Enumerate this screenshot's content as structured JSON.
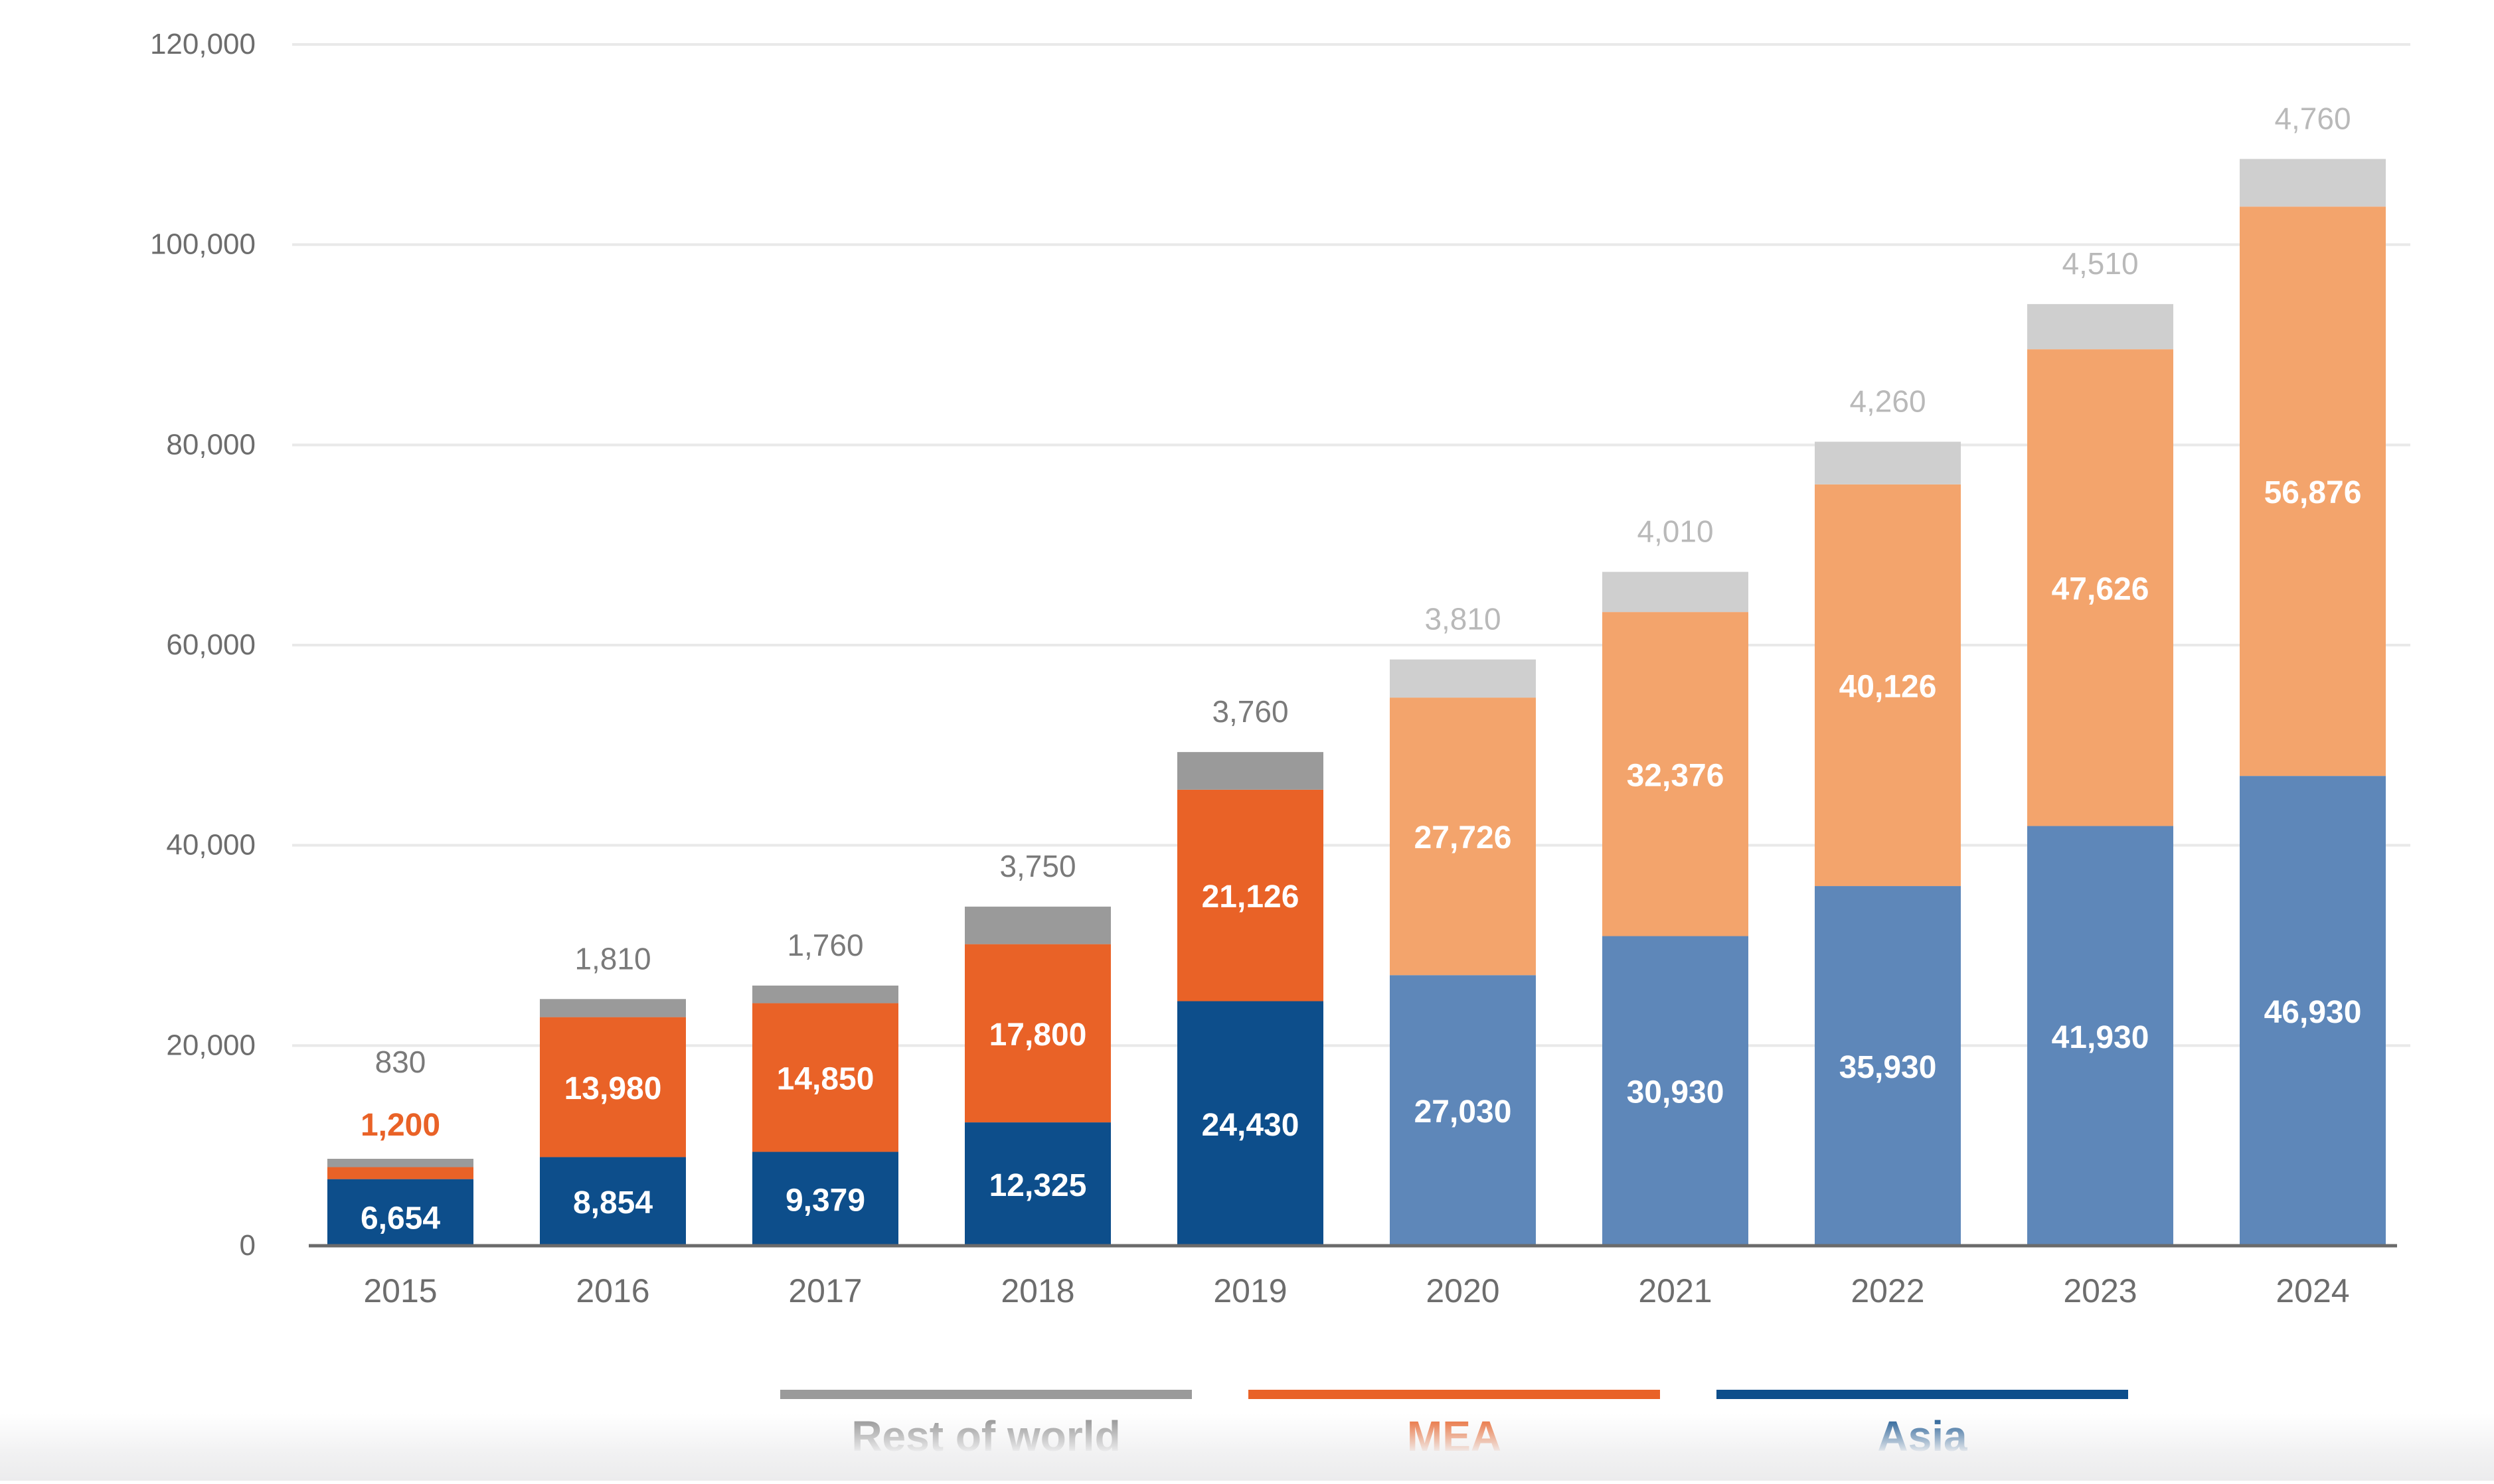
{
  "chart_data": {
    "type": "bar",
    "stacked": true,
    "categories": [
      "2015",
      "2016",
      "2017",
      "2018",
      "2019",
      "2020",
      "2021",
      "2022",
      "2023",
      "2024"
    ],
    "series": [
      {
        "name": "Asia",
        "values": [
          6654,
          8854,
          9379,
          12325,
          24430,
          27030,
          30930,
          35930,
          41930,
          46930
        ],
        "labels": [
          "6,654",
          "8,854",
          "9,379",
          "12,325",
          "24,430",
          "27,030",
          "30,930",
          "35,930",
          "41,930",
          "46,930"
        ],
        "color": "#0d4e8b",
        "forecast_color": "#5e87b9"
      },
      {
        "name": "MEA",
        "values": [
          1200,
          13980,
          14850,
          17800,
          21126,
          27726,
          32376,
          40126,
          47626,
          56876
        ],
        "labels": [
          "1,200",
          "13,980",
          "14,850",
          "17,800",
          "21,126",
          "27,726",
          "32,376",
          "40,126",
          "47,626",
          "56,876"
        ],
        "color": "#e96227",
        "forecast_color": "#f3a46c"
      },
      {
        "name": "Rest of world",
        "values": [
          830,
          1810,
          1760,
          3750,
          3760,
          3810,
          4010,
          4260,
          4510,
          4760
        ],
        "labels": [
          "830",
          "1,810",
          "1,760",
          "3,750",
          "3,760",
          "3,810",
          "4,010",
          "4,260",
          "4,510",
          "4,760"
        ],
        "color": "#9a9a9a",
        "forecast_color": "#cfcfcf"
      }
    ],
    "forecast_from_index": 5,
    "y_ticks": [
      {
        "value": 0,
        "label": "0"
      },
      {
        "value": 20000,
        "label": "20,000"
      },
      {
        "value": 40000,
        "label": "40,000"
      },
      {
        "value": 60000,
        "label": "60,000"
      },
      {
        "value": 80000,
        "label": "80,000"
      },
      {
        "value": 100000,
        "label": "100,000"
      },
      {
        "value": 120000,
        "label": "120,000"
      }
    ],
    "ylim": [
      0,
      120000
    ],
    "grid": true,
    "legend_position": "bottom",
    "legend": [
      {
        "name": "Rest of world",
        "color": "#9a9a9a"
      },
      {
        "name": "MEA",
        "color": "#e96227"
      },
      {
        "name": "Asia",
        "color": "#0d4e8b"
      }
    ],
    "colors": {
      "axis_text": "#6d6d6d",
      "grid": "#e9e9e9",
      "axis_line": "#6b6b6b",
      "label_on_bar": "#ffffff",
      "rest_label_actual": "#7a7a7a",
      "rest_label_forecast": "#b9b9b9",
      "legend_rest_text": "#8a8a8a"
    }
  }
}
